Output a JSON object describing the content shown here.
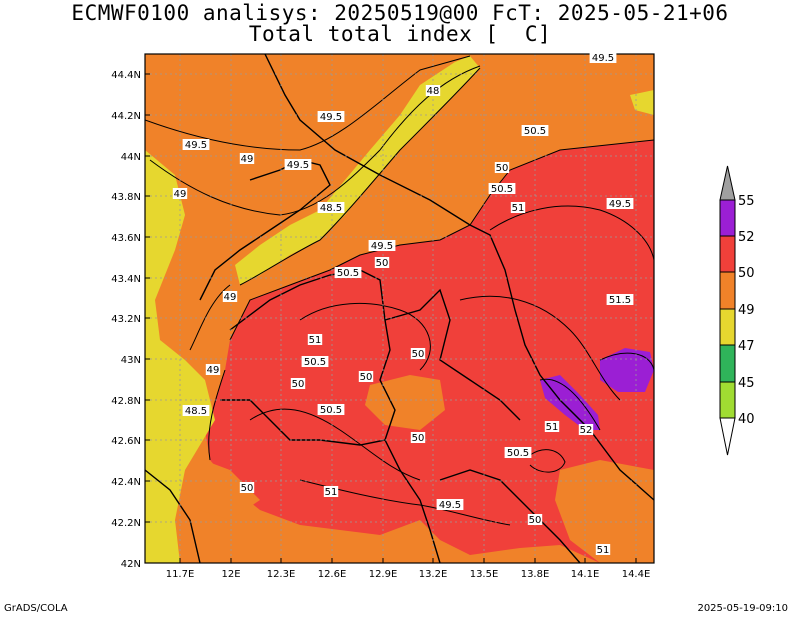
{
  "title": {
    "line1": "ECMWF0100 analisys: 20250519@00 FcT: 2025-05-21+06",
    "line2": "Total total index [  C]"
  },
  "map": {
    "lat_labels": [
      "44.4N",
      "44.2N",
      "44N",
      "43.8N",
      "43.6N",
      "43.4N",
      "43.2N",
      "43N",
      "42.8N",
      "42.6N",
      "42.4N",
      "42.2N",
      "42N"
    ],
    "lon_labels": [
      "11.7E",
      "12E",
      "12.3E",
      "12.6E",
      "12.9E",
      "13.2E",
      "13.5E",
      "13.8E",
      "14.1E",
      "14.4E"
    ],
    "contour_labels": [
      "49.5",
      "48",
      "49.5",
      "49.5",
      "49",
      "49.5",
      "49",
      "48.5",
      "50",
      "50.5",
      "51",
      "50.5",
      "49.5",
      "49.5",
      "50",
      "50.5",
      "49",
      "51",
      "50.5",
      "50",
      "51.5",
      "49",
      "50",
      "50",
      "48.5",
      "50.5",
      "50",
      "51",
      "52",
      "50.5",
      "50",
      "51",
      "49.5",
      "50",
      "51"
    ]
  },
  "legend": {
    "labels": [
      "55",
      "52",
      "50",
      "49",
      "47",
      "45",
      "40"
    ],
    "colors": [
      "#a0a0a0",
      "#9b1fd4",
      "#f0403a",
      "#f08229",
      "#e6d72f",
      "#2fb45a",
      "#a0dc32",
      "#ffffff"
    ]
  },
  "footer": {
    "left": "GrADS/COLA",
    "right": "2025-05-19-09:10"
  },
  "colors": {
    "level_50": "#f0403a",
    "level_49": "#f08229",
    "level_47": "#e6d72f",
    "level_52": "#9b1fd4"
  }
}
